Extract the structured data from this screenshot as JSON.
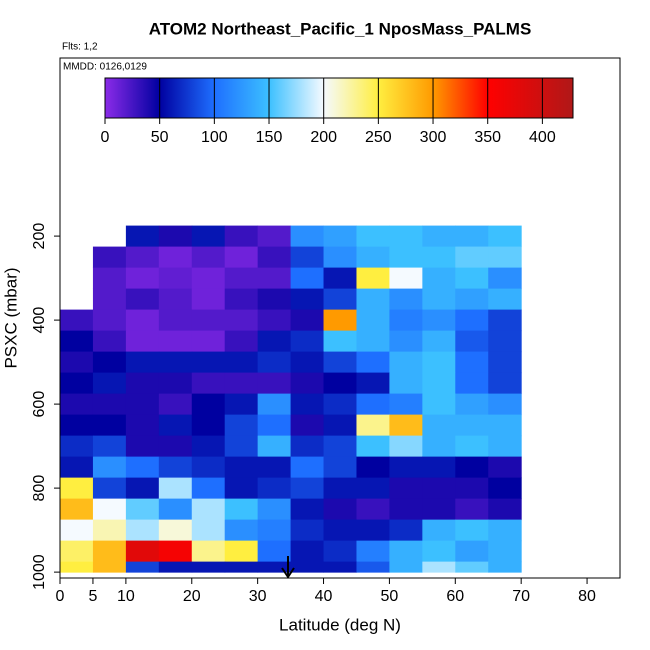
{
  "chart_data": {
    "type": "heatmap",
    "title": "ATOM2 Northeast_Pacific_1 NposMass_PALMS",
    "subtitle": "Flts: 1,2",
    "annotation": "MMDD: 0126,0129",
    "xlabel": "Latitude (deg N)",
    "ylabel": "PSXC (mbar)",
    "xlim": [
      0,
      85
    ],
    "ylim": [
      1014,
      -224
    ],
    "xticks": [
      0,
      5,
      10,
      20,
      30,
      40,
      50,
      60,
      70,
      80
    ],
    "yticks": [
      200,
      400,
      600,
      800,
      1000
    ],
    "x_bins": [
      0,
      5,
      10,
      15,
      20,
      25,
      30,
      35,
      40,
      45,
      50,
      55,
      60,
      65,
      70
    ],
    "y_bins": [
      175,
      225,
      275,
      325,
      375,
      425,
      475,
      525,
      575,
      625,
      675,
      725,
      775,
      825,
      875,
      925,
      975,
      1000
    ],
    "z": [
      [
        null,
        null,
        60,
        40,
        60,
        30,
        20,
        120,
        130,
        150,
        150,
        140,
        140,
        150
      ],
      [
        null,
        30,
        20,
        10,
        20,
        10,
        30,
        80,
        120,
        140,
        150,
        150,
        160,
        160
      ],
      [
        null,
        20,
        10,
        15,
        10,
        20,
        20,
        100,
        60,
        250,
        200,
        140,
        150,
        120
      ],
      [
        null,
        20,
        30,
        20,
        10,
        30,
        40,
        60,
        80,
        140,
        120,
        140,
        130,
        140
      ],
      [
        30,
        20,
        10,
        20,
        20,
        20,
        30,
        40,
        300,
        140,
        110,
        120,
        100,
        80
      ],
      [
        50,
        30,
        10,
        10,
        10,
        30,
        60,
        70,
        150,
        140,
        120,
        140,
        90,
        80
      ],
      [
        40,
        50,
        60,
        60,
        60,
        60,
        70,
        60,
        80,
        100,
        140,
        150,
        100,
        80
      ],
      [
        50,
        60,
        40,
        40,
        30,
        30,
        30,
        40,
        50,
        60,
        140,
        150,
        100,
        80
      ],
      [
        40,
        40,
        40,
        30,
        50,
        60,
        120,
        60,
        70,
        100,
        110,
        150,
        130,
        120
      ],
      [
        50,
        50,
        40,
        60,
        50,
        80,
        100,
        40,
        60,
        230,
        280,
        140,
        140,
        140
      ],
      [
        70,
        80,
        40,
        40,
        60,
        80,
        140,
        70,
        80,
        150,
        170,
        140,
        150,
        140
      ],
      [
        60,
        120,
        100,
        80,
        70,
        60,
        60,
        100,
        80,
        50,
        60,
        60,
        50,
        40
      ],
      [
        250,
        80,
        60,
        180,
        100,
        60,
        70,
        80,
        60,
        60,
        40,
        40,
        40,
        50
      ],
      [
        280,
        200,
        160,
        120,
        180,
        150,
        120,
        60,
        40,
        30,
        40,
        40,
        30,
        40
      ],
      [
        200,
        220,
        180,
        210,
        180,
        120,
        110,
        70,
        60,
        60,
        70,
        140,
        150,
        140
      ],
      [
        240,
        280,
        380,
        360,
        230,
        250,
        100,
        60,
        70,
        110,
        140,
        150,
        130,
        140
      ],
      [
        250,
        280,
        80,
        60,
        60,
        60,
        60,
        60,
        60,
        90,
        140,
        180,
        160,
        140
      ]
    ],
    "clim": [
      0,
      428
    ],
    "cticks": [
      0,
      50,
      100,
      150,
      200,
      250,
      300,
      350,
      400
    ],
    "colorscale": [
      [
        0,
        "#8b2be8"
      ],
      [
        50,
        "#0000a0"
      ],
      [
        100,
        "#1e6fff"
      ],
      [
        150,
        "#3cc0ff"
      ],
      [
        200,
        "#f5faff"
      ],
      [
        250,
        "#ffee40"
      ],
      [
        300,
        "#ff9a00"
      ],
      [
        350,
        "#ff0000"
      ],
      [
        428,
        "#b01818"
      ]
    ]
  }
}
